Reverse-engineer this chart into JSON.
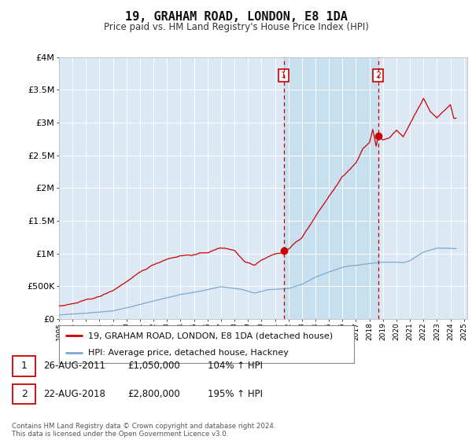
{
  "title": "19, GRAHAM ROAD, LONDON, E8 1DA",
  "subtitle": "Price paid vs. HM Land Registry's House Price Index (HPI)",
  "legend_line1": "19, GRAHAM ROAD, LONDON, E8 1DA (detached house)",
  "legend_line2": "HPI: Average price, detached house, Hackney",
  "transaction1_label": "1",
  "transaction1_date": "26-AUG-2011",
  "transaction1_price": "£1,050,000",
  "transaction1_hpi": "104% ↑ HPI",
  "transaction2_label": "2",
  "transaction2_date": "22-AUG-2018",
  "transaction2_price": "£2,800,000",
  "transaction2_hpi": "195% ↑ HPI",
  "footer": "Contains HM Land Registry data © Crown copyright and database right 2024.\nThis data is licensed under the Open Government Licence v3.0.",
  "background_color": "#ffffff",
  "plot_bg_color": "#dce9f5",
  "shade_color": "#c8dff0",
  "red_line_color": "#cc0000",
  "blue_line_color": "#7aaad0",
  "ylim": [
    0,
    4000000
  ],
  "yticks": [
    0,
    500000,
    1000000,
    1500000,
    2000000,
    2500000,
    3000000,
    3500000,
    4000000
  ],
  "ytick_labels": [
    "£0",
    "£500K",
    "£1M",
    "£1.5M",
    "£2M",
    "£2.5M",
    "£3M",
    "£3.5M",
    "£4M"
  ],
  "transaction1_year": 2011.65,
  "transaction1_value": 1050000,
  "transaction2_year": 2018.65,
  "transaction2_value": 2800000,
  "xmin": 1995.0,
  "xmax": 2025.25
}
